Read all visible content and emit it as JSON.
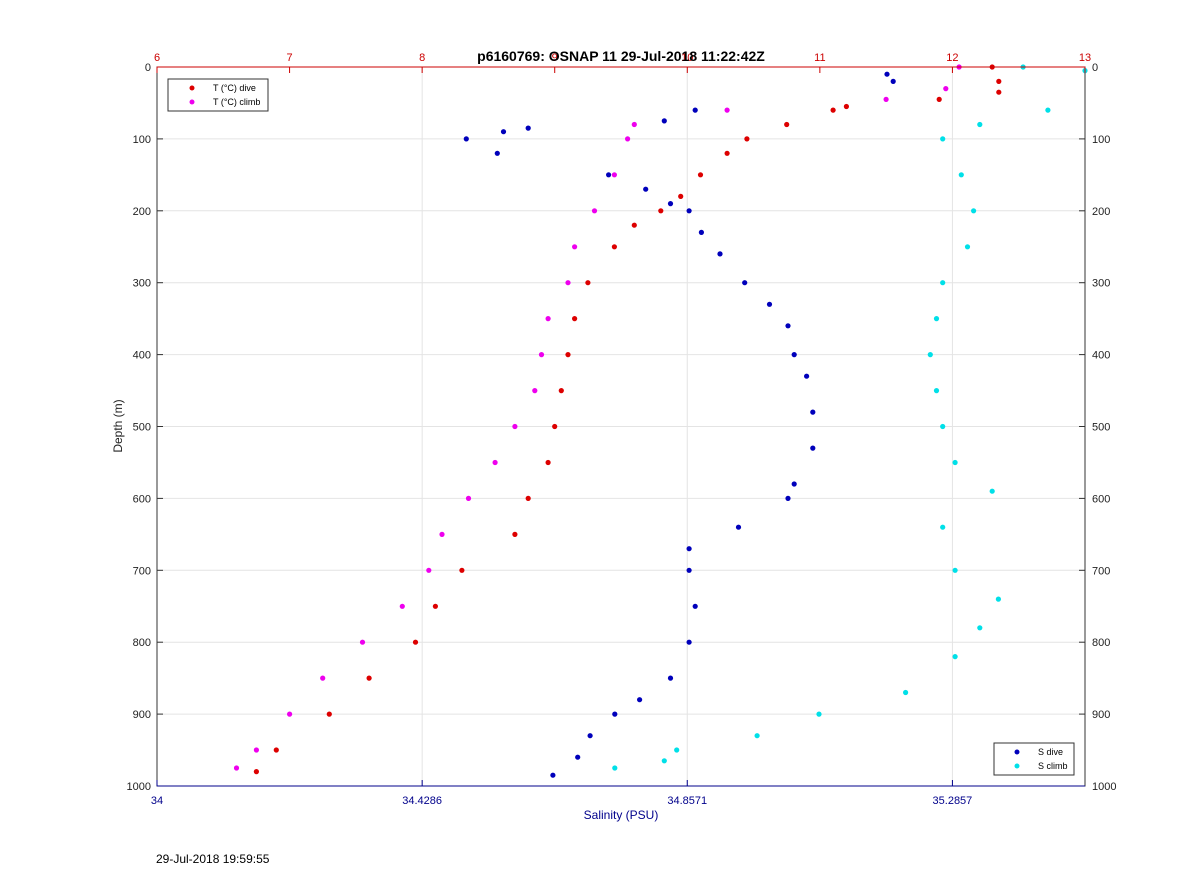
{
  "timestamp": "29-Jul-2018 19:59:55",
  "chart_data": {
    "type": "scatter",
    "title": "p6160769: OSNAP 11 29-Jul-2018 11:22:42Z",
    "ylabel": "Depth (m)",
    "xlabel": "Salinity (PSU)",
    "ylim": [
      0,
      1000
    ],
    "y_ticks": [
      0,
      100,
      200,
      300,
      400,
      500,
      600,
      700,
      800,
      900,
      1000
    ],
    "temp_axis": {
      "range": [
        6,
        13
      ],
      "ticks": [
        "6",
        "7",
        "8",
        "9",
        "10",
        "11",
        "12",
        "13"
      ],
      "color": "#cc0000"
    },
    "salinity_axis": {
      "range": [
        34,
        35.5
      ],
      "ticks": [
        "34",
        "34.4286",
        "34.8571",
        "35.2857"
      ],
      "color": "#00008b"
    },
    "grid": true,
    "legend_top": {
      "placement": "top-left",
      "entries": [
        "T (°C) dive",
        "T (°C) climb"
      ]
    },
    "legend_bottom": {
      "placement": "bottom-right",
      "entries": [
        "S dive",
        "S climb"
      ]
    },
    "colors": {
      "t_dive": "#dd0000",
      "t_climb": "#ee00ee",
      "s_dive": "#0000bb",
      "s_climb": "#00e0e8"
    },
    "series": [
      {
        "name": "T (°C) dive",
        "axis": "temperature",
        "points": [
          [
            0,
            12.3
          ],
          [
            20,
            12.35
          ],
          [
            35,
            12.35
          ],
          [
            45,
            11.9
          ],
          [
            55,
            11.2
          ],
          [
            60,
            11.1
          ],
          [
            80,
            10.75
          ],
          [
            100,
            10.45
          ],
          [
            120,
            10.3
          ],
          [
            150,
            10.1
          ],
          [
            180,
            9.95
          ],
          [
            200,
            9.8
          ],
          [
            220,
            9.6
          ],
          [
            250,
            9.45
          ],
          [
            300,
            9.25
          ],
          [
            350,
            9.15
          ],
          [
            400,
            9.1
          ],
          [
            450,
            9.05
          ],
          [
            500,
            9.0
          ],
          [
            550,
            8.95
          ],
          [
            600,
            8.8
          ],
          [
            650,
            8.7
          ],
          [
            700,
            8.3
          ],
          [
            750,
            8.1
          ],
          [
            800,
            7.95
          ],
          [
            850,
            7.6
          ],
          [
            900,
            7.3
          ],
          [
            950,
            6.9
          ],
          [
            980,
            6.75
          ]
        ]
      },
      {
        "name": "T (°C) climb",
        "axis": "temperature",
        "points": [
          [
            0,
            12.05
          ],
          [
            30,
            11.95
          ],
          [
            45,
            11.5
          ],
          [
            60,
            10.3
          ],
          [
            80,
            9.6
          ],
          [
            100,
            9.55
          ],
          [
            150,
            9.45
          ],
          [
            200,
            9.3
          ],
          [
            250,
            9.15
          ],
          [
            300,
            9.1
          ],
          [
            350,
            8.95
          ],
          [
            400,
            8.9
          ],
          [
            450,
            8.85
          ],
          [
            500,
            8.7
          ],
          [
            550,
            8.55
          ],
          [
            600,
            8.35
          ],
          [
            650,
            8.15
          ],
          [
            700,
            8.05
          ],
          [
            750,
            7.85
          ],
          [
            800,
            7.55
          ],
          [
            850,
            7.25
          ],
          [
            900,
            7.0
          ],
          [
            950,
            6.75
          ],
          [
            975,
            6.6
          ]
        ]
      },
      {
        "name": "S dive",
        "axis": "salinity",
        "points": [
          [
            10,
            35.18
          ],
          [
            20,
            35.19
          ],
          [
            60,
            34.87
          ],
          [
            75,
            34.82
          ],
          [
            85,
            34.6
          ],
          [
            90,
            34.56
          ],
          [
            100,
            34.5
          ],
          [
            120,
            34.55
          ],
          [
            150,
            34.73
          ],
          [
            170,
            34.79
          ],
          [
            190,
            34.83
          ],
          [
            200,
            34.86
          ],
          [
            230,
            34.88
          ],
          [
            260,
            34.91
          ],
          [
            300,
            34.95
          ],
          [
            330,
            34.99
          ],
          [
            360,
            35.02
          ],
          [
            400,
            35.03
          ],
          [
            430,
            35.05
          ],
          [
            480,
            35.06
          ],
          [
            530,
            35.06
          ],
          [
            580,
            35.03
          ],
          [
            600,
            35.02
          ],
          [
            640,
            34.94
          ],
          [
            670,
            34.86
          ],
          [
            700,
            34.86
          ],
          [
            750,
            34.87
          ],
          [
            800,
            34.86
          ],
          [
            850,
            34.83
          ],
          [
            880,
            34.78
          ],
          [
            900,
            34.74
          ],
          [
            930,
            34.7
          ],
          [
            960,
            34.68
          ],
          [
            985,
            34.64
          ]
        ]
      },
      {
        "name": "S climb",
        "axis": "salinity",
        "points": [
          [
            0,
            35.4
          ],
          [
            5,
            35.5
          ],
          [
            60,
            35.44
          ],
          [
            80,
            35.33
          ],
          [
            100,
            35.27
          ],
          [
            150,
            35.3
          ],
          [
            200,
            35.32
          ],
          [
            250,
            35.31
          ],
          [
            300,
            35.27
          ],
          [
            350,
            35.26
          ],
          [
            400,
            35.25
          ],
          [
            450,
            35.26
          ],
          [
            500,
            35.27
          ],
          [
            550,
            35.29
          ],
          [
            590,
            35.35
          ],
          [
            640,
            35.27
          ],
          [
            700,
            35.29
          ],
          [
            740,
            35.36
          ],
          [
            780,
            35.33
          ],
          [
            820,
            35.29
          ],
          [
            870,
            35.21
          ],
          [
            900,
            35.07
          ],
          [
            930,
            34.97
          ],
          [
            950,
            34.84
          ],
          [
            965,
            34.82
          ],
          [
            975,
            34.74
          ]
        ]
      }
    ]
  }
}
